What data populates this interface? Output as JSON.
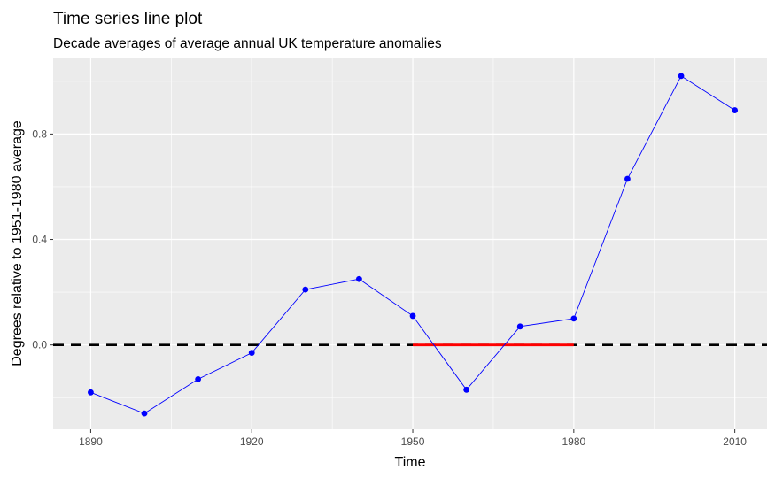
{
  "chart_data": {
    "type": "line",
    "title": "Time series line plot",
    "subtitle": "Decade averages of average annual UK temperature anomalies",
    "xlabel": "Time",
    "ylabel": "Degrees relative to 1951-1980 average",
    "xlim": [
      1883,
      2016
    ],
    "ylim": [
      -0.32,
      1.09
    ],
    "x_ticks": [
      1890,
      1920,
      1950,
      1980,
      2010
    ],
    "x_tick_labels": [
      "1890",
      "1920",
      "1950",
      "1980",
      "2010"
    ],
    "y_ticks": [
      0.0,
      0.4,
      0.8
    ],
    "y_tick_labels": [
      "0.0",
      "0.4",
      "0.8"
    ],
    "grid": true,
    "series": [
      {
        "color": "#0000ff",
        "x": [
          1890,
          1900,
          1910,
          1920,
          1930,
          1940,
          1950,
          1960,
          1970,
          1980,
          1990,
          2000,
          2010
        ],
        "y": [
          -0.18,
          -0.26,
          -0.13,
          -0.03,
          0.21,
          0.25,
          0.11,
          -0.17,
          0.07,
          0.1,
          0.63,
          1.02,
          0.89
        ]
      }
    ],
    "reference_lines": [
      {
        "kind": "hline",
        "y": 0.0,
        "style": "dashed",
        "color": "#000000"
      },
      {
        "kind": "segment",
        "x": [
          1950,
          1980
        ],
        "y": [
          0.0,
          0.0
        ],
        "style": "solid",
        "color": "#ff0000"
      }
    ],
    "panel_color": "#ebebeb",
    "grid_color": "#ffffff"
  }
}
